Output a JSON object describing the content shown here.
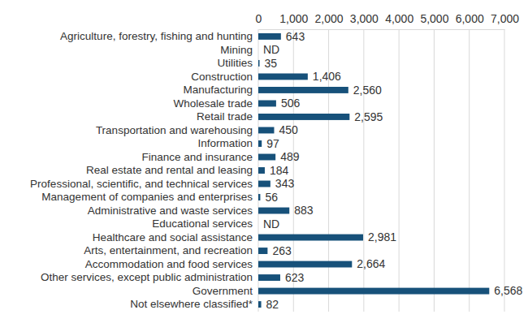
{
  "chart_data": {
    "type": "bar",
    "orientation": "horizontal",
    "categories": [
      "Agriculture, forestry, fishing and hunting",
      "Mining",
      "Utilities",
      "Construction",
      "Manufacturing",
      "Wholesale trade",
      "Retail trade",
      "Transportation and warehousing",
      "Information",
      "Finance and insurance",
      "Real estate and rental and leasing",
      "Professional, scientific, and technical services",
      "Management of companies and enterprises",
      "Administrative and waste services",
      "Educational services",
      "Healthcare and social assistance",
      "Arts, entertainment, and recreation",
      "Accommodation and food services",
      "Other services, except public administration",
      "Government",
      "Not elsewhere classified*"
    ],
    "values": [
      643,
      null,
      35,
      1406,
      2560,
      506,
      2595,
      450,
      97,
      489,
      184,
      343,
      56,
      883,
      null,
      2981,
      263,
      2664,
      623,
      6568,
      82
    ],
    "value_labels": [
      "643",
      "ND",
      "35",
      "1,406",
      "2,560",
      "506",
      "2,595",
      "450",
      "97",
      "489",
      "184",
      "343",
      "56",
      "883",
      "ND",
      "2,981",
      "263",
      "2,664",
      "623",
      "6,568",
      "82"
    ],
    "color": "#17517a",
    "xlim": [
      0,
      7000
    ],
    "xticks": [
      0,
      {
        "value": 1000,
        "label": "1,000"
      },
      {
        "value": 2000,
        "label": "2,000"
      },
      {
        "value": 3000,
        "label": "3,000"
      },
      {
        "value": 4000,
        "label": "4,000"
      },
      {
        "value": 5000,
        "label": "5,000"
      },
      {
        "value": 6000,
        "label": "6,000"
      },
      {
        "value": 7000,
        "label": "7,000"
      }
    ],
    "grid": true,
    "data_labels": true
  }
}
